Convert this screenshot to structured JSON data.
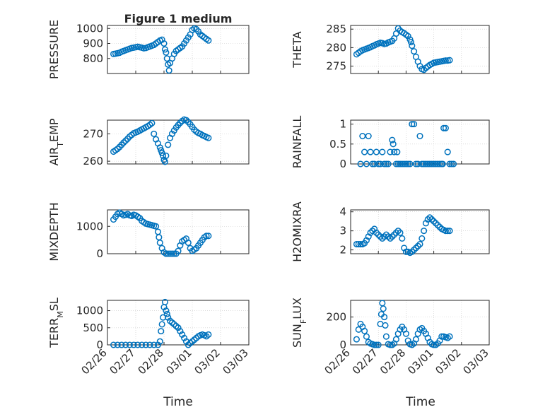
{
  "title": "Figure 1 medium",
  "colors": {
    "series": "#0072BD",
    "axes": "#262626",
    "grid": "#c8c8c8"
  },
  "x_tick_labels": [
    "02/26",
    "02/27",
    "02/28",
    "03/01",
    "03/02",
    "03/03"
  ],
  "x_axis_label": "Time",
  "chart_data": [
    {
      "type": "scatter",
      "ylabel": "PRESSURE",
      "ylim": [
        700,
        1020
      ],
      "yticks": [
        800,
        900,
        1000
      ],
      "xlim": [
        0,
        7
      ],
      "grid": true,
      "x": [
        0.3,
        0.4,
        0.5,
        0.6,
        0.7,
        0.8,
        0.9,
        1.0,
        1.1,
        1.2,
        1.3,
        1.4,
        1.5,
        1.6,
        1.7,
        1.8,
        1.9,
        2.0,
        2.1,
        2.2,
        2.3,
        2.4,
        2.5,
        2.6,
        2.7,
        2.8,
        2.85,
        2.9,
        2.95,
        3.0,
        3.05,
        3.1,
        3.2,
        3.3,
        3.4,
        3.5,
        3.6,
        3.7,
        3.8,
        3.9,
        4.0,
        4.1,
        4.2,
        4.3,
        4.4,
        4.5,
        4.6,
        4.7,
        4.8,
        4.9,
        5.0
      ],
      "y": [
        830,
        832,
        835,
        838,
        845,
        850,
        855,
        860,
        865,
        870,
        872,
        875,
        878,
        875,
        872,
        868,
        870,
        875,
        880,
        885,
        890,
        900,
        910,
        920,
        925,
        900,
        860,
        840,
        800,
        760,
        720,
        770,
        800,
        830,
        850,
        860,
        870,
        880,
        900,
        920,
        940,
        960,
        990,
        1000,
        995,
        980,
        960,
        950,
        940,
        930,
        920
      ]
    },
    {
      "type": "scatter",
      "ylabel": "THETA",
      "ylim": [
        273,
        286
      ],
      "yticks": [
        275,
        280,
        285
      ],
      "xlim": [
        0,
        7
      ],
      "grid": true,
      "x": [
        0.3,
        0.4,
        0.5,
        0.6,
        0.7,
        0.8,
        0.9,
        1.0,
        1.1,
        1.2,
        1.3,
        1.4,
        1.5,
        1.6,
        1.7,
        1.8,
        1.9,
        2.0,
        2.1,
        2.2,
        2.3,
        2.4,
        2.5,
        2.6,
        2.7,
        2.8,
        2.9,
        3.0,
        3.05,
        3.1,
        3.2,
        3.3,
        3.4,
        3.5,
        3.6,
        3.7,
        3.8,
        3.9,
        4.0,
        4.1,
        4.2,
        4.3,
        4.4,
        4.5,
        4.6,
        4.7,
        4.8,
        4.9,
        5.0
      ],
      "y": [
        278.2,
        278.6,
        279,
        279.3,
        279.5,
        279.7,
        279.9,
        280.1,
        280.4,
        280.6,
        280.9,
        281.1,
        281.3,
        281.2,
        281,
        281.1,
        281.4,
        281.6,
        281.8,
        282.5,
        283.8,
        285.2,
        284.6,
        284.2,
        283.9,
        283.5,
        283.1,
        282.2,
        281.5,
        280.5,
        279,
        277.5,
        276.2,
        275,
        274.2,
        274,
        274.5,
        274.9,
        275.3,
        275.6,
        275.9,
        276,
        276.1,
        276.2,
        276.3,
        276.4,
        276.5,
        276.5,
        276.6
      ]
    },
    {
      "type": "scatter",
      "ylabel": "AIR_TEMP",
      "ylim": [
        259,
        275
      ],
      "yticks": [
        260,
        270
      ],
      "xlim": [
        0,
        7
      ],
      "grid": true,
      "x": [
        0.3,
        0.4,
        0.5,
        0.6,
        0.7,
        0.8,
        0.9,
        1.0,
        1.1,
        1.2,
        1.3,
        1.4,
        1.5,
        1.6,
        1.7,
        1.8,
        1.9,
        2.0,
        2.1,
        2.2,
        2.3,
        2.4,
        2.5,
        2.6,
        2.65,
        2.7,
        2.75,
        2.8,
        2.85,
        2.9,
        3.0,
        3.1,
        3.2,
        3.3,
        3.4,
        3.5,
        3.6,
        3.7,
        3.8,
        3.9,
        4.0,
        4.1,
        4.2,
        4.3,
        4.4,
        4.5,
        4.6,
        4.7,
        4.8,
        4.9,
        5.0
      ],
      "y": [
        263.5,
        264,
        264.5,
        265.2,
        266,
        266.8,
        267.5,
        268.2,
        269,
        269.6,
        270.2,
        270.5,
        270.8,
        271.2,
        271.6,
        272,
        272.4,
        272.8,
        273.3,
        273.9,
        270,
        268,
        266.5,
        265,
        264,
        263,
        262,
        260.5,
        259.8,
        262,
        266,
        268.5,
        270,
        271.2,
        272.3,
        273.2,
        274,
        274.7,
        275.2,
        275,
        274.3,
        273.5,
        272.5,
        271.5,
        270.8,
        270.3,
        270,
        269.5,
        269.2,
        268.8,
        268.5
      ]
    },
    {
      "type": "scatter",
      "ylabel": "RAINFALL",
      "ylim": [
        0,
        1.1
      ],
      "yticks": [
        0,
        0.5,
        1
      ],
      "xlim": [
        0,
        7
      ],
      "grid": true,
      "x": [
        0.5,
        0.6,
        0.7,
        0.8,
        0.9,
        1.0,
        1.1,
        1.2,
        1.3,
        1.4,
        1.5,
        1.6,
        1.7,
        1.8,
        1.9,
        2.0,
        2.1,
        2.15,
        2.2,
        2.3,
        2.35,
        2.4,
        2.5,
        2.6,
        2.7,
        2.8,
        2.9,
        3.0,
        3.1,
        3.2,
        3.3,
        3.4,
        3.5,
        3.6,
        3.7,
        3.8,
        3.9,
        4.0,
        4.1,
        4.2,
        4.3,
        4.4,
        4.5,
        4.6,
        4.65,
        4.7,
        4.8,
        4.9,
        5.0,
        5.1,
        5.2
      ],
      "y": [
        0,
        0.7,
        0.3,
        0,
        0.7,
        0.3,
        0,
        0,
        0.3,
        0,
        0,
        0.3,
        0,
        0,
        0,
        0.3,
        0.6,
        0.5,
        0.3,
        0,
        0.3,
        0,
        0,
        0,
        0,
        0,
        0,
        0,
        1,
        1,
        0,
        0,
        0.7,
        0,
        0,
        0,
        0,
        0,
        0,
        0,
        0,
        0,
        0,
        0,
        0,
        0.9,
        0.9,
        0.3,
        0,
        0,
        0
      ]
    },
    {
      "type": "scatter",
      "ylabel": "MIXDEPTH",
      "ylim": [
        0,
        1600
      ],
      "yticks": [
        0,
        1000
      ],
      "xlim": [
        0,
        7
      ],
      "grid": true,
      "x": [
        0.3,
        0.4,
        0.5,
        0.6,
        0.7,
        0.8,
        0.9,
        1.0,
        1.1,
        1.2,
        1.3,
        1.4,
        1.5,
        1.6,
        1.7,
        1.8,
        1.9,
        2.0,
        2.1,
        2.2,
        2.3,
        2.4,
        2.5,
        2.55,
        2.6,
        2.7,
        2.8,
        2.9,
        3.0,
        3.1,
        3.2,
        3.3,
        3.4,
        3.5,
        3.6,
        3.7,
        3.8,
        3.9,
        4.0,
        4.1,
        4.2,
        4.3,
        4.4,
        4.5,
        4.6,
        4.7,
        4.8,
        4.9,
        5.0
      ],
      "y": [
        1250,
        1350,
        1450,
        1500,
        1450,
        1400,
        1420,
        1450,
        1400,
        1380,
        1420,
        1400,
        1350,
        1300,
        1200,
        1150,
        1100,
        1080,
        1060,
        1040,
        1020,
        1000,
        800,
        600,
        400,
        200,
        50,
        0,
        0,
        0,
        0,
        0,
        0,
        100,
        300,
        450,
        500,
        550,
        400,
        200,
        100,
        150,
        200,
        300,
        400,
        500,
        600,
        650,
        650
      ]
    },
    {
      "type": "scatter",
      "ylabel": "H2OMIXRA",
      "ylim": [
        1.8,
        4.1
      ],
      "yticks": [
        2,
        3,
        4
      ],
      "xlim": [
        0,
        7
      ],
      "grid": true,
      "x": [
        0.3,
        0.4,
        0.5,
        0.6,
        0.7,
        0.8,
        0.9,
        1.0,
        1.1,
        1.2,
        1.3,
        1.4,
        1.5,
        1.6,
        1.7,
        1.8,
        1.9,
        2.0,
        2.1,
        2.2,
        2.3,
        2.4,
        2.5,
        2.6,
        2.7,
        2.8,
        2.9,
        3.0,
        3.1,
        3.2,
        3.3,
        3.4,
        3.5,
        3.6,
        3.7,
        3.8,
        3.9,
        4.0,
        4.1,
        4.2,
        4.3,
        4.4,
        4.5,
        4.6,
        4.7,
        4.8,
        4.9,
        5.0
      ],
      "y": [
        2.3,
        2.3,
        2.3,
        2.3,
        2.35,
        2.5,
        2.7,
        2.9,
        3.0,
        3.1,
        2.9,
        2.8,
        2.7,
        2.6,
        2.7,
        2.8,
        2.7,
        2.6,
        2.7,
        2.8,
        2.9,
        3.0,
        2.9,
        2.6,
        2.1,
        1.9,
        1.9,
        1.85,
        1.9,
        2.0,
        2.1,
        2.2,
        2.3,
        2.6,
        3.0,
        3.4,
        3.6,
        3.7,
        3.6,
        3.5,
        3.4,
        3.3,
        3.2,
        3.1,
        3.05,
        3.0,
        3.0,
        3.0
      ]
    },
    {
      "type": "scatter",
      "ylabel": "TERR_MSL",
      "ylim": [
        0,
        1300
      ],
      "yticks": [
        0,
        500,
        1000
      ],
      "xlim": [
        0,
        7
      ],
      "grid": true,
      "x": [
        0.3,
        0.5,
        0.7,
        0.9,
        1.1,
        1.3,
        1.5,
        1.7,
        1.9,
        2.1,
        2.3,
        2.5,
        2.6,
        2.65,
        2.7,
        2.75,
        2.8,
        2.85,
        2.9,
        2.95,
        3.0,
        3.1,
        3.2,
        3.3,
        3.4,
        3.5,
        3.6,
        3.7,
        3.8,
        3.9,
        4.0,
        4.1,
        4.2,
        4.3,
        4.4,
        4.5,
        4.6,
        4.7,
        4.8,
        4.9,
        5.0
      ],
      "y": [
        0,
        0,
        0,
        0,
        0,
        0,
        0,
        0,
        0,
        0,
        0,
        0,
        100,
        400,
        600,
        800,
        1100,
        1250,
        1000,
        900,
        800,
        700,
        650,
        600,
        550,
        500,
        400,
        300,
        200,
        100,
        0,
        50,
        100,
        150,
        200,
        250,
        280,
        300,
        280,
        250,
        300
      ]
    },
    {
      "type": "scatter",
      "ylabel": "SUN_FLUX",
      "ylim": [
        0,
        320
      ],
      "yticks": [
        0,
        200
      ],
      "xlim": [
        0,
        7
      ],
      "grid": true,
      "x": [
        0.3,
        0.4,
        0.5,
        0.6,
        0.7,
        0.8,
        0.9,
        1.0,
        1.1,
        1.2,
        1.3,
        1.4,
        1.5,
        1.55,
        1.6,
        1.65,
        1.7,
        1.75,
        1.8,
        1.9,
        2.0,
        2.1,
        2.2,
        2.3,
        2.4,
        2.5,
        2.6,
        2.7,
        2.8,
        2.9,
        3.0,
        3.1,
        3.2,
        3.3,
        3.4,
        3.5,
        3.6,
        3.7,
        3.8,
        3.9,
        4.0,
        4.1,
        4.2,
        4.3,
        4.4,
        4.5,
        4.6,
        4.7,
        4.8,
        4.9,
        5.0
      ],
      "y": [
        40,
        110,
        150,
        130,
        100,
        60,
        20,
        10,
        5,
        0,
        0,
        0,
        150,
        220,
        300,
        260,
        200,
        140,
        60,
        5,
        0,
        0,
        10,
        40,
        80,
        110,
        130,
        110,
        80,
        30,
        5,
        0,
        10,
        40,
        80,
        110,
        120,
        100,
        80,
        50,
        20,
        5,
        0,
        0,
        10,
        30,
        60,
        60,
        55,
        50,
        60
      ]
    }
  ]
}
